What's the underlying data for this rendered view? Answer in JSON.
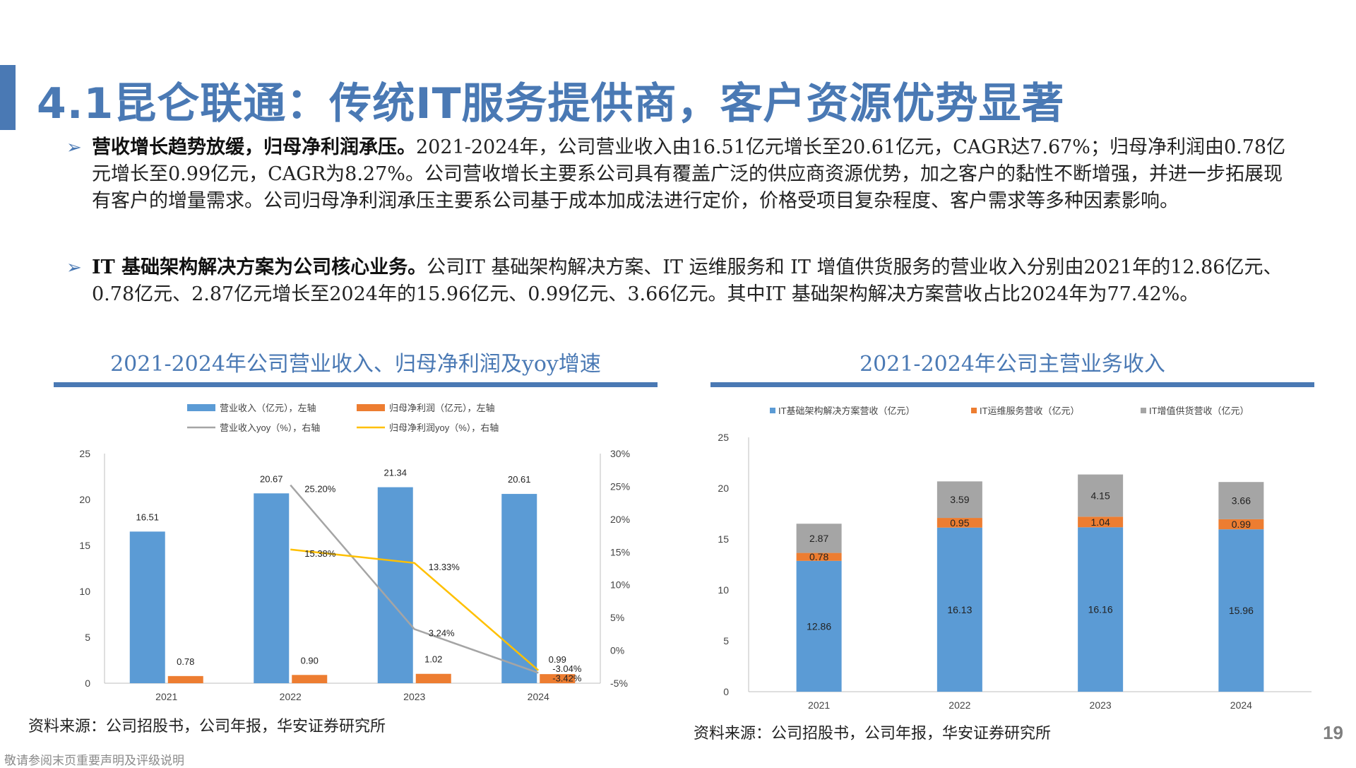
{
  "page": {
    "title": "4.1昆仑联通：传统IT服务提供商，客户资源优势显著",
    "page_number": "19",
    "disclaimer": "敬请参阅末页重要声明及评级说明"
  },
  "paragraphs": [
    {
      "bold": "营收增长趋势放缓，归母净利润承压。",
      "text": "2021-2024年，公司营业收入由16.51亿元增长至20.61亿元，CAGR达7.67%；归母净利润由0.78亿元增长至0.99亿元，CAGR为8.27%。公司营收增长主要系公司具有覆盖广泛的供应商资源优势，加之客户的黏性不断增强，并进一步拓展现有客户的增量需求。公司归母净利润承压主要系公司基于成本加成法进行定价，价格受项目复杂程度、客户需求等多种因素影响。"
    },
    {
      "bold": "IT 基础架构解决方案为公司核心业务。",
      "text": "公司IT 基础架构解决方案、IT 运维服务和 IT 增值供货服务的营业收入分别由2021年的12.86亿元、0.78亿元、2.87亿元增长至2024年的15.96亿元、0.99亿元、3.66亿元。其中IT 基础架构解决方案营收占比2024年为77.42%。"
    }
  ],
  "left_panel": {
    "section_title": "2021-2024年公司营业收入、归母净利润及yoy增速",
    "source": "资料来源：公司招股书，公司年报，华安证券研究所"
  },
  "right_panel": {
    "section_title": "2021-2024年公司主营业务收入",
    "source": "资料来源：公司招股书，公司年报，华安证券研究所"
  },
  "colors": {
    "blue": "#5b9bd5",
    "orange": "#ed7d31",
    "gray": "#a5a5a5",
    "yellow": "#ffc000",
    "accent": "#4a79b4"
  },
  "chart_data": [
    {
      "type": "bar",
      "categories": [
        "2021",
        "2022",
        "2023",
        "2024"
      ],
      "series": [
        {
          "name": "营业收入（亿元），左轴",
          "kind": "bar",
          "axis": "left",
          "color": "#5b9bd5",
          "values": [
            16.51,
            20.67,
            21.34,
            20.61
          ],
          "labels": [
            "16.51",
            "20.67",
            "21.34",
            "20.61"
          ]
        },
        {
          "name": "归母净利润（亿元），左轴",
          "kind": "bar",
          "axis": "left",
          "color": "#ed7d31",
          "values": [
            0.78,
            0.9,
            1.02,
            0.99
          ],
          "labels": [
            "0.78",
            "0.90",
            "1.02",
            "0.99"
          ]
        },
        {
          "name": "营业收入yoy（%），右轴",
          "kind": "line",
          "axis": "right",
          "color": "#a5a5a5",
          "values": [
            null,
            25.2,
            3.24,
            -3.42
          ],
          "labels": [
            null,
            "25.20%",
            "3.24%",
            "-3.42%"
          ]
        },
        {
          "name": "归母净利润yoy（%），右轴",
          "kind": "line",
          "axis": "right",
          "color": "#ffc000",
          "values": [
            null,
            15.38,
            13.33,
            -3.04
          ],
          "labels": [
            null,
            "15.38%",
            "13.33%",
            "-3.04%"
          ]
        }
      ],
      "y_left": {
        "ticks": [
          "0",
          "5",
          "10",
          "15",
          "20",
          "25"
        ],
        "range": [
          0,
          25
        ]
      },
      "y_right": {
        "ticks": [
          "-5%",
          "0%",
          "5%",
          "10%",
          "15%",
          "20%",
          "25%",
          "30%"
        ],
        "range": [
          -5,
          30
        ]
      },
      "legend": "top"
    },
    {
      "type": "bar",
      "stacked": true,
      "categories": [
        "2021",
        "2022",
        "2023",
        "2024"
      ],
      "series": [
        {
          "name": "IT基础架构解决方案营收（亿元）",
          "color": "#5b9bd5",
          "values": [
            12.86,
            16.13,
            16.16,
            15.96
          ],
          "labels": [
            "12.86",
            "16.13",
            "16.16",
            "15.96"
          ]
        },
        {
          "name": "IT运维服务营收（亿元）",
          "color": "#ed7d31",
          "values": [
            0.78,
            0.95,
            1.04,
            0.99
          ],
          "labels": [
            "0.78",
            "0.95",
            "1.04",
            "0.99"
          ]
        },
        {
          "name": "IT增值供货营收（亿元）",
          "color": "#a5a5a5",
          "values": [
            2.87,
            3.59,
            4.15,
            3.66
          ],
          "labels": [
            "2.87",
            "3.59",
            "4.15",
            "3.66"
          ]
        }
      ],
      "y_left": {
        "ticks": [
          "0",
          "5",
          "10",
          "15",
          "20",
          "25"
        ],
        "range": [
          0,
          25
        ]
      },
      "legend": "top"
    }
  ]
}
